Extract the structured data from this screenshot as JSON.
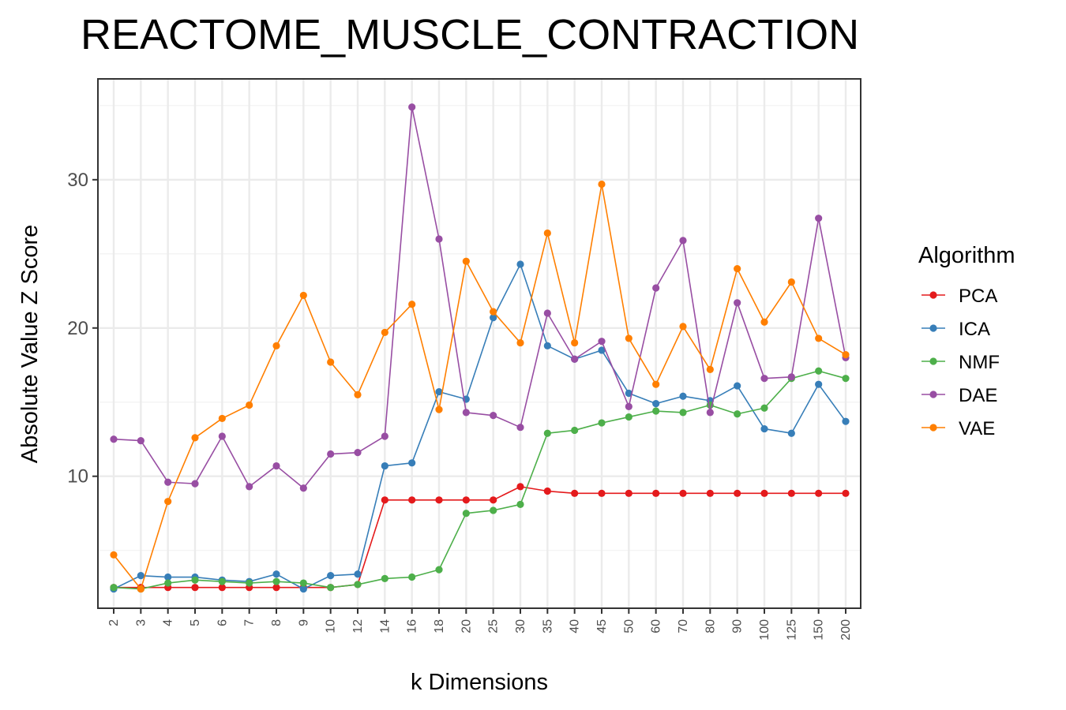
{
  "chart_data": {
    "type": "line",
    "title": "REACTOME_MUSCLE_CONTRACTION",
    "xlabel": "k Dimensions",
    "ylabel": "Absolute Value Z Score",
    "categories": [
      "2",
      "3",
      "4",
      "5",
      "6",
      "7",
      "8",
      "9",
      "10",
      "12",
      "14",
      "16",
      "18",
      "20",
      "25",
      "30",
      "35",
      "40",
      "45",
      "50",
      "60",
      "70",
      "80",
      "90",
      "100",
      "125",
      "150",
      "200"
    ],
    "yticks": [
      10,
      20,
      30
    ],
    "ylim": [
      1.1,
      36.8
    ],
    "grid": true,
    "legend": {
      "title": "Algorithm",
      "position": "right"
    },
    "series": [
      {
        "name": "PCA",
        "color": "#E41A1C",
        "values": [
          2.5,
          2.5,
          2.5,
          2.5,
          2.5,
          2.5,
          2.5,
          2.5,
          2.5,
          2.7,
          8.4,
          8.4,
          8.4,
          8.4,
          8.4,
          9.3,
          9.0,
          8.85,
          8.85,
          8.85,
          8.85,
          8.85,
          8.85,
          8.85,
          8.85,
          8.85,
          8.85,
          8.85
        ]
      },
      {
        "name": "ICA",
        "color": "#377EB8",
        "values": [
          2.4,
          3.3,
          3.2,
          3.2,
          3.0,
          2.9,
          3.4,
          2.4,
          3.3,
          3.4,
          10.7,
          10.9,
          15.7,
          15.2,
          20.7,
          24.3,
          18.8,
          17.9,
          18.5,
          15.6,
          14.9,
          15.4,
          15.1,
          16.1,
          13.2,
          12.9,
          16.2,
          13.7
        ]
      },
      {
        "name": "NMF",
        "color": "#4DAF4A",
        "values": [
          2.5,
          2.4,
          2.8,
          3.0,
          2.9,
          2.8,
          2.9,
          2.8,
          2.5,
          2.7,
          3.1,
          3.2,
          3.7,
          7.5,
          7.7,
          8.1,
          12.9,
          13.1,
          13.6,
          14.0,
          14.4,
          14.3,
          14.8,
          14.2,
          14.6,
          16.6,
          17.1,
          16.6
        ]
      },
      {
        "name": "DAE",
        "color": "#984EA3",
        "values": [
          12.5,
          12.4,
          9.6,
          9.5,
          12.7,
          9.3,
          10.7,
          9.2,
          11.5,
          11.6,
          12.7,
          34.9,
          26.0,
          14.3,
          14.1,
          13.3,
          21.0,
          17.9,
          19.1,
          14.7,
          22.7,
          25.9,
          14.3,
          21.7,
          16.6,
          16.7,
          27.4,
          18.0
        ]
      },
      {
        "name": "VAE",
        "color": "#FF7F00",
        "values": [
          4.7,
          2.4,
          8.3,
          12.6,
          13.9,
          14.8,
          18.8,
          22.2,
          17.7,
          15.5,
          19.7,
          21.6,
          14.5,
          24.5,
          21.1,
          19.0,
          26.4,
          19.0,
          29.7,
          19.3,
          16.2,
          20.1,
          17.2,
          24.0,
          20.4,
          23.1,
          19.3,
          18.2
        ]
      }
    ]
  }
}
